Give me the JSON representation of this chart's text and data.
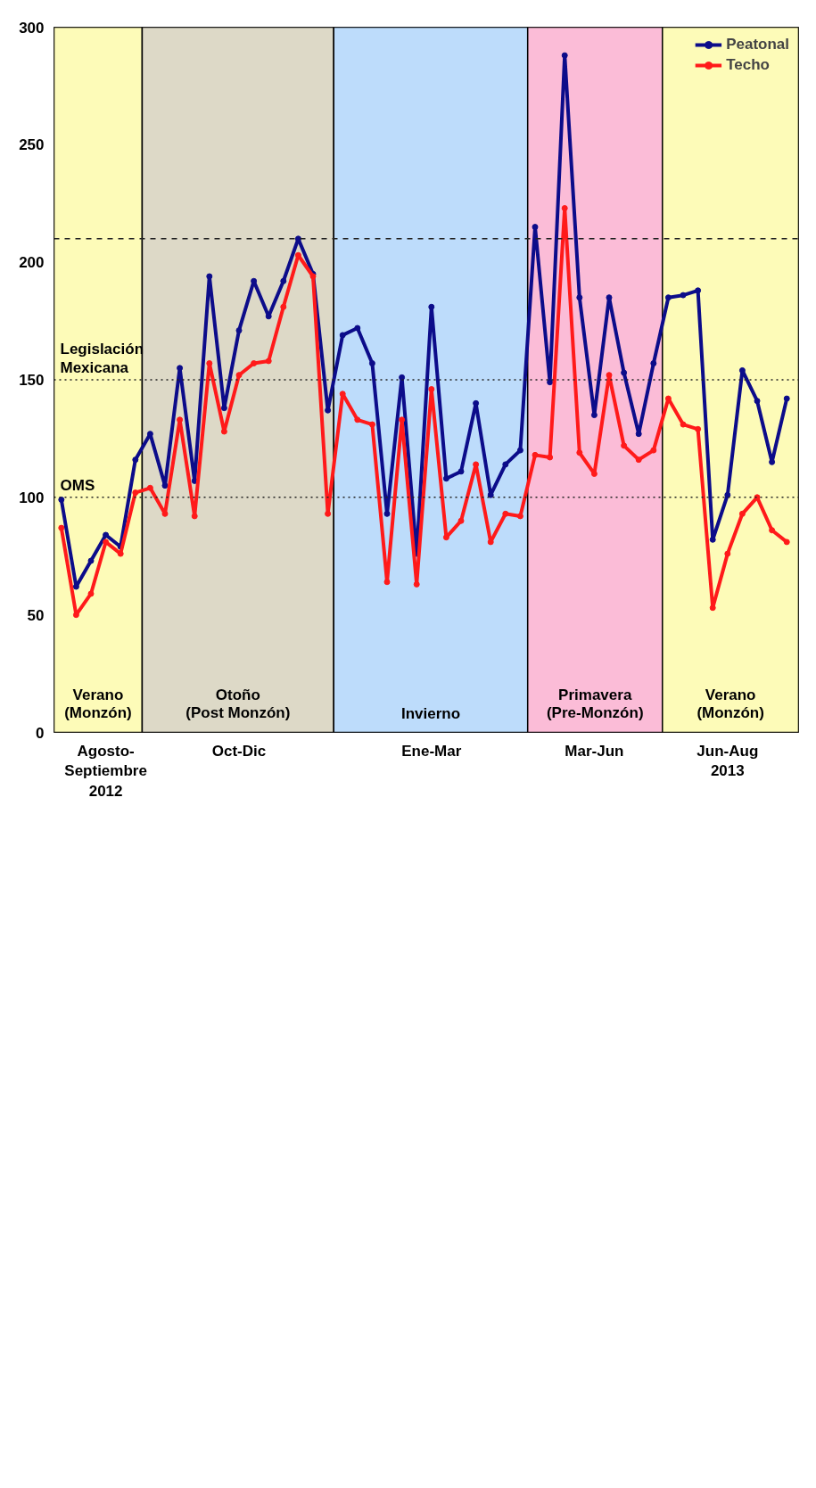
{
  "chart_data": {
    "type": "line",
    "categories": [
      null,
      null,
      null,
      "Agosto-\nSeptiembre\n2012",
      null,
      null,
      null,
      null,
      null,
      null,
      null,
      null,
      "Oct-Dic",
      null,
      null,
      null,
      null,
      null,
      null,
      null,
      null,
      null,
      null,
      null,
      null,
      "Ene-Mar",
      null,
      null,
      null,
      null,
      null,
      null,
      null,
      null,
      null,
      null,
      "Mar-Jun",
      null,
      null,
      null,
      null,
      null,
      null,
      null,
      null,
      "Jun-Aug\n2013",
      null,
      null,
      null,
      null
    ],
    "series": [
      {
        "name": "Peatonal",
        "color": "#0c0c8a",
        "values": [
          99,
          62,
          73,
          84,
          79,
          116,
          127,
          105,
          155,
          107,
          194,
          138,
          171,
          192,
          177,
          192,
          210,
          195,
          137,
          169,
          172,
          157,
          93,
          151,
          76,
          181,
          108,
          111,
          140,
          101,
          114,
          120,
          215,
          149,
          288,
          185,
          135,
          185,
          153,
          127,
          157,
          185,
          186,
          188,
          82,
          101,
          154,
          141,
          115,
          142
        ]
      },
      {
        "name": "Techo",
        "color": "#ff1a1a",
        "values": [
          87,
          50,
          59,
          81,
          76,
          102,
          104,
          93,
          133,
          92,
          157,
          128,
          152,
          157,
          158,
          181,
          203,
          194,
          93,
          144,
          133,
          131,
          64,
          133,
          63,
          146,
          83,
          90,
          114,
          81,
          93,
          92,
          118,
          117,
          223,
          119,
          110,
          152,
          122,
          116,
          120,
          142,
          131,
          129,
          53,
          76,
          93,
          100,
          86,
          81
        ]
      }
    ],
    "ylim": [
      0,
      300
    ],
    "yticks": [
      0,
      50,
      100,
      150,
      200,
      250,
      300
    ],
    "annotations": [
      "Verano\n(Monzón)",
      "Otoño\n(Post Monzón)",
      "Invierno",
      "Primavera\n(Pre-Monzón)",
      "Verano\n(Monzón)"
    ],
    "ref_lines": [
      {
        "axis": "y",
        "value": 100,
        "label": "OMS",
        "line_style": "dotted",
        "color": "#222222"
      },
      {
        "axis": "y",
        "value": 150,
        "label": "Legislación Mexicana",
        "line_style": "dotted",
        "color": "#222222"
      },
      {
        "axis": "y",
        "value": 210,
        "line_style": "dashed",
        "color": "#222222"
      }
    ],
    "marker": "circle",
    "line_style": "solid",
    "grid": false,
    "legend": "top right"
  }
}
